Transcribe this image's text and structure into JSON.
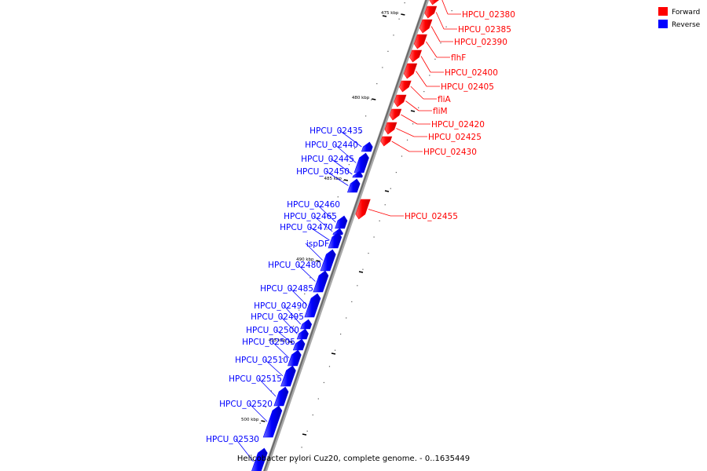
{
  "caption": "Helicobacter pylori Cuz20, complete genome. - 0..1635449",
  "legend": {
    "forward_label": "Forward",
    "reverse_label": "Reverse",
    "forward_color": "#ff0000",
    "reverse_color": "#0000ff"
  },
  "ticks": [
    {
      "kbp": 475,
      "label": "475 kbp"
    },
    {
      "kbp": 480,
      "label": "480 kbp"
    },
    {
      "kbp": 485,
      "label": "485 kbp"
    },
    {
      "kbp": 490,
      "label": "490 kbp"
    },
    {
      "kbp": 495,
      "label": "495 kbp"
    },
    {
      "kbp": 500,
      "label": "500 kbp"
    }
  ],
  "genes": [
    {
      "name": "HPCU_02380",
      "strand": "forward"
    },
    {
      "name": "HPCU_02385",
      "strand": "forward"
    },
    {
      "name": "HPCU_02390",
      "strand": "forward"
    },
    {
      "name": "flhF",
      "strand": "forward"
    },
    {
      "name": "HPCU_02400",
      "strand": "forward"
    },
    {
      "name": "HPCU_02405",
      "strand": "forward"
    },
    {
      "name": "fliA",
      "strand": "forward"
    },
    {
      "name": "fliM",
      "strand": "forward"
    },
    {
      "name": "HPCU_02420",
      "strand": "forward"
    },
    {
      "name": "HPCU_02425",
      "strand": "forward"
    },
    {
      "name": "HPCU_02430",
      "strand": "forward"
    },
    {
      "name": "HPCU_02435",
      "strand": "reverse"
    },
    {
      "name": "HPCU_02440",
      "strand": "reverse"
    },
    {
      "name": "HPCU_02445",
      "strand": "reverse"
    },
    {
      "name": "HPCU_02450",
      "strand": "reverse"
    },
    {
      "name": "HPCU_02455",
      "strand": "forward"
    },
    {
      "name": "HPCU_02460",
      "strand": "reverse"
    },
    {
      "name": "HPCU_02465",
      "strand": "reverse"
    },
    {
      "name": "HPCU_02470",
      "strand": "reverse"
    },
    {
      "name": "ispDF",
      "strand": "reverse"
    },
    {
      "name": "HPCU_02480",
      "strand": "reverse"
    },
    {
      "name": "HPCU_02485",
      "strand": "reverse"
    },
    {
      "name": "HPCU_02490",
      "strand": "reverse"
    },
    {
      "name": "HPCU_02495",
      "strand": "reverse"
    },
    {
      "name": "HPCU_02500",
      "strand": "reverse"
    },
    {
      "name": "HPCU_02505",
      "strand": "reverse"
    },
    {
      "name": "HPCU_02510",
      "strand": "reverse"
    },
    {
      "name": "HPCU_02515",
      "strand": "reverse"
    },
    {
      "name": "HPCU_02520",
      "strand": "reverse"
    },
    {
      "name": "HPCU_02530",
      "strand": "reverse"
    }
  ]
}
